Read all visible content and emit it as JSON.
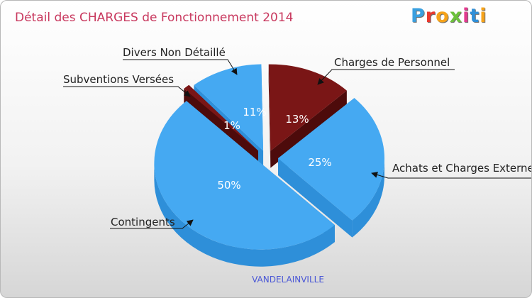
{
  "title": "Détail des CHARGES de Fonctionnement 2014",
  "logo": {
    "text": "Proxiti",
    "letter_colors": [
      "#3aa0e0",
      "#e8392f",
      "#f6a31a",
      "#6cc13b",
      "#e23a8f",
      "#2f8fd8",
      "#f6a31a"
    ]
  },
  "commune": "VANDELAINVILLE",
  "colors": {
    "blue_top": "#45a9f2",
    "blue_side": "#2e8fd9",
    "red_top": "#7a1616",
    "red_side": "#4d0b0b",
    "title": "#c8385e"
  },
  "chart_data": {
    "type": "pie",
    "title": "Détail des CHARGES de Fonctionnement 2014",
    "slices": [
      {
        "label": "Charges de Personnel",
        "value": 13,
        "pct_label": "13%",
        "color": "#7a1616",
        "side_color": "#4d0b0b"
      },
      {
        "label": "Achats et Charges Externes",
        "value": 25,
        "pct_label": "25%",
        "color": "#45a9f2",
        "side_color": "#2e8fd9"
      },
      {
        "label": "Contingents",
        "value": 50,
        "pct_label": "50%",
        "color": "#45a9f2",
        "side_color": "#2e8fd9"
      },
      {
        "label": "Subventions Versées",
        "value": 1,
        "pct_label": "1%",
        "color": "#7a1616",
        "side_color": "#4d0b0b"
      },
      {
        "label": "Divers Non Détaillé",
        "value": 11,
        "pct_label": "11%",
        "color": "#45a9f2",
        "side_color": "#2e8fd9"
      }
    ]
  }
}
